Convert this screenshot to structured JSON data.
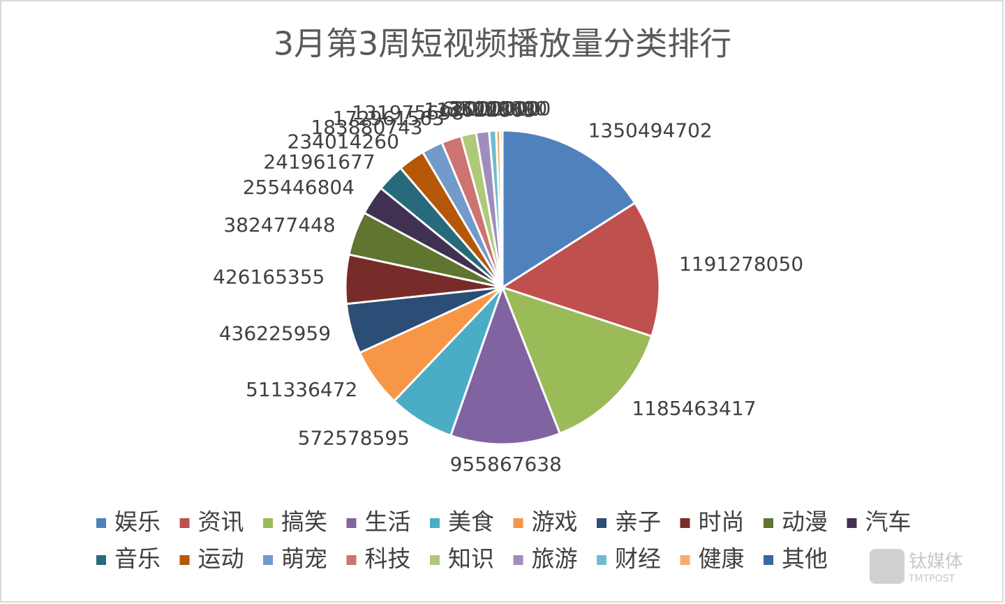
{
  "chart_data": {
    "type": "pie",
    "title": "3月第3周短视频播放量分类排行",
    "categories": [
      "娱乐",
      "资讯",
      "搞笑",
      "生活",
      "美食",
      "游戏",
      "亲子",
      "时尚",
      "动漫",
      "汽车",
      "音乐",
      "运动",
      "萌宠",
      "科技",
      "知识",
      "旅游",
      "财经",
      "健康",
      "其他"
    ],
    "values": [
      1350494702,
      1191278050,
      1185463417,
      955867638,
      572578595,
      511336472,
      436225959,
      426165355,
      382477448,
      255446804,
      241961677,
      234014260,
      183880743,
      172961563,
      131975698,
      113622863,
      60000000,
      35000000,
      20000000
    ],
    "colors": [
      "#4F81BD",
      "#C0504D",
      "#9BBB59",
      "#8064A2",
      "#4BACC6",
      "#F79646",
      "#2C4D75",
      "#772C2A",
      "#5F7530",
      "#403152",
      "#276A7C",
      "#B65708",
      "#729ACA",
      "#CD7371",
      "#AFC97A",
      "#A08DBC",
      "#6FBDD1",
      "#F9AB6B",
      "#3A679C"
    ],
    "legend": "bottom",
    "watermark": [
      "钛媒体",
      "TMTPOST"
    ]
  }
}
